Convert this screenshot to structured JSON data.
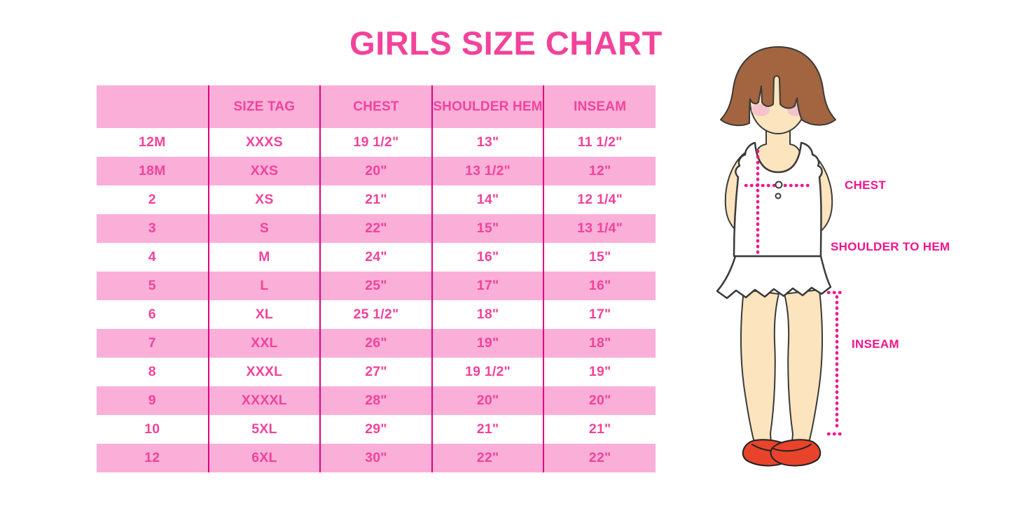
{
  "title": "GIRLS SIZE CHART",
  "chart_data": {
    "type": "table",
    "title": "GIRLS SIZE CHART",
    "columns": [
      "",
      "SIZE TAG",
      "CHEST",
      "SHOULDER HEM",
      "INSEAM"
    ],
    "rows": [
      [
        "12M",
        "XXXS",
        "19 1/2\"",
        "13\"",
        "11 1/2\""
      ],
      [
        "18M",
        "XXS",
        "20\"",
        "13 1/2\"",
        "12\""
      ],
      [
        "2",
        "XS",
        "21\"",
        "14\"",
        "12 1/4\""
      ],
      [
        "3",
        "S",
        "22\"",
        "15\"",
        "13 1/4\""
      ],
      [
        "4",
        "M",
        "24\"",
        "16\"",
        "15\""
      ],
      [
        "5",
        "L",
        "25\"",
        "17\"",
        "16\""
      ],
      [
        "6",
        "XL",
        "25 1/2\"",
        "18\"",
        "17\""
      ],
      [
        "7",
        "XXL",
        "26\"",
        "19\"",
        "18\""
      ],
      [
        "8",
        "XXXL",
        "27\"",
        "19 1/2\"",
        "19\""
      ],
      [
        "9",
        "XXXXL",
        "28\"",
        "20\"",
        "20\""
      ],
      [
        "10",
        "5XL",
        "29\"",
        "21\"",
        "21\""
      ],
      [
        "12",
        "6XL",
        "30\"",
        "22\"",
        "22\""
      ]
    ],
    "layout": {
      "grid": false,
      "striped_rows": true,
      "legend": "none"
    }
  },
  "figure": {
    "chest_label": "CHEST",
    "shoulder_to_hem_label": "SHOULDER TO HEM",
    "inseam_label": "INSEAM"
  },
  "colors": {
    "accent": "#F2439B",
    "row_pink": "#FAAFD9",
    "divider": "#E2007F",
    "annotation": "#F0148C",
    "hair": "#A2653F",
    "skin": "#FBE4BE",
    "blush": "#F6C3CD",
    "shoe": "#E8432B",
    "outline": "#3A3A3A"
  }
}
